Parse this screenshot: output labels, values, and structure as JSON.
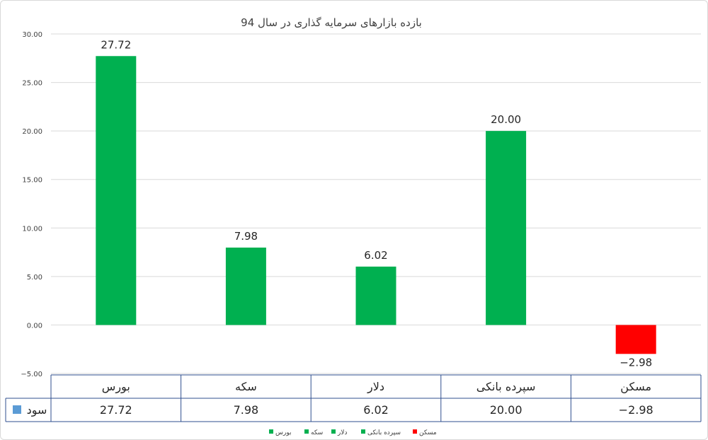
{
  "chart_data": {
    "type": "bar",
    "title": "بازده بازارهای سرمایه گذاری در سال 94",
    "categories": [
      "بورس",
      "سکه",
      "دلار",
      "سپرده بانکی",
      "مسکن"
    ],
    "series": [
      {
        "name": "سود",
        "values": [
          27.72,
          7.98,
          6.02,
          20.0,
          -2.98
        ]
      }
    ],
    "value_labels": [
      "27.72",
      "7.98",
      "6.02",
      "20.00",
      "−2.98"
    ],
    "ylim": [
      -5,
      30
    ],
    "yticks": [
      30,
      25,
      20,
      15,
      10,
      5,
      0,
      -5
    ],
    "ytick_labels": [
      "30.00",
      "25.00",
      "20.00",
      "15.00",
      "10.00",
      "5.00",
      "0.00",
      "−5.00"
    ],
    "grid": true,
    "bar_colors": [
      "#00b050",
      "#00b050",
      "#00b050",
      "#00b050",
      "#ff0000"
    ],
    "series_marker_color": "#5b9bd5",
    "legend_position": "bottom",
    "legend_entries": [
      {
        "label": "بورس",
        "color": "#00b050"
      },
      {
        "label": "سکه",
        "color": "#00b050"
      },
      {
        "label": "دلار",
        "color": "#00b050"
      },
      {
        "label": "سپرده بانکی",
        "color": "#00b050"
      },
      {
        "label": "مسکن",
        "color": "#ff0000"
      }
    ],
    "data_table": true
  }
}
